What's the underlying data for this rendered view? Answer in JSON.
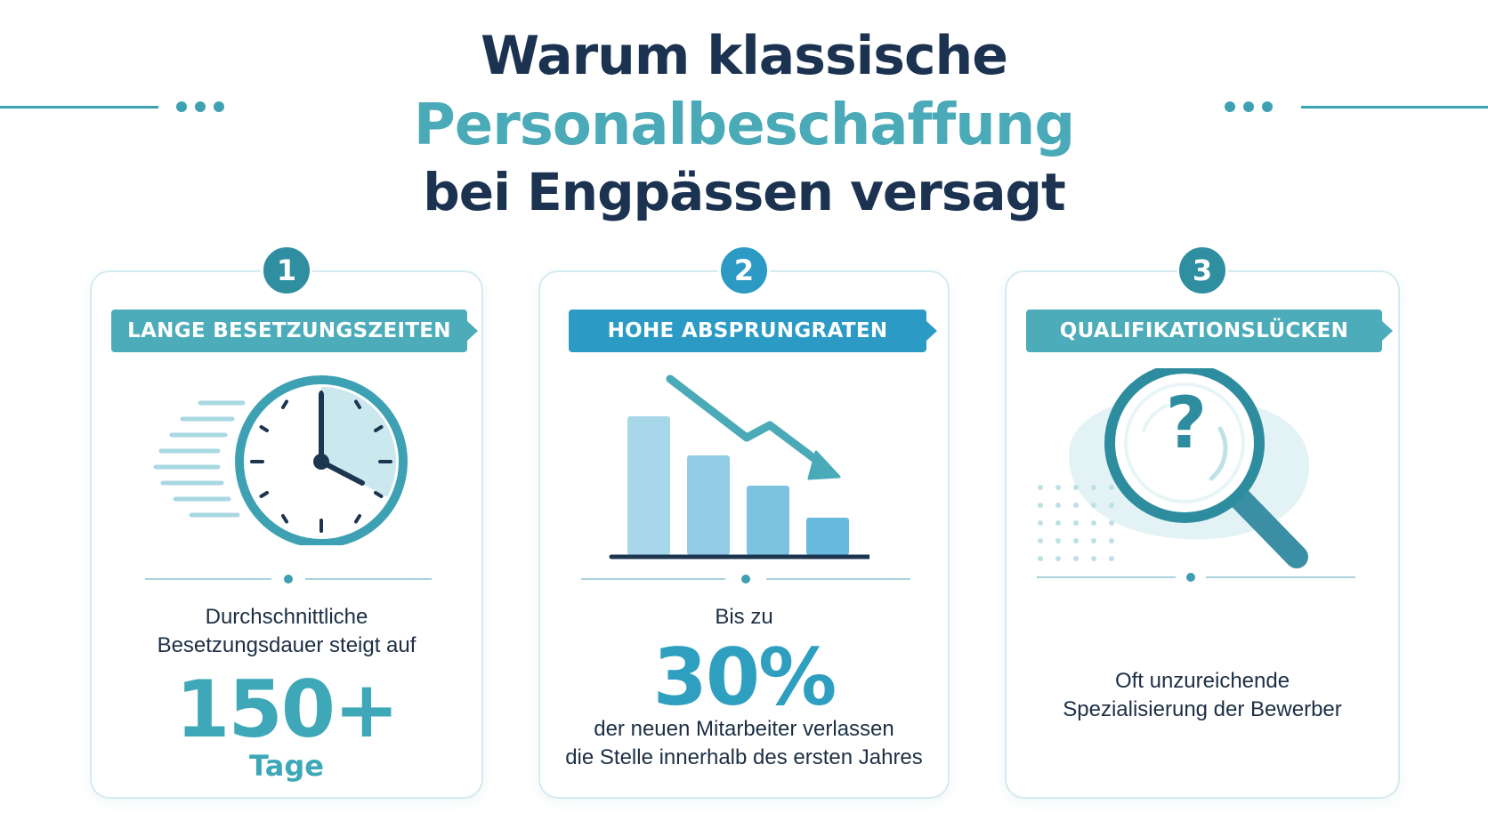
{
  "header": {
    "line1": "Warum klassische",
    "line2": "Personalbeschaffung",
    "line3": "bei Engpässen versagt"
  },
  "colors": {
    "navy": "#1b3250",
    "teal": "#4aaab8",
    "blue": "#2b9bc5",
    "light_blue": "#a9d7ea"
  },
  "cards": [
    {
      "number": "1",
      "label": "LANGE BESETZUNGSZEITEN",
      "icon": "clock-icon",
      "text_line1": "Durchschnittliche",
      "text_line2": "Besetzungsdauer steigt auf",
      "stat": "150+",
      "stat_unit": "Tage"
    },
    {
      "number": "2",
      "label": "HOHE ABSPRUNGRATEN",
      "icon": "declining-bar-chart-icon",
      "text_pre": "Bis zu",
      "stat": "30%",
      "text_line1": "der neuen Mitarbeiter verlassen",
      "text_line2": "die Stelle innerhalb des ersten Jahres"
    },
    {
      "number": "3",
      "label": "QUALIFIKATIONSLÜCKEN",
      "icon": "magnifier-question-icon",
      "icon_glyph": "?",
      "text_line1": "Oft unzureichende",
      "text_line2": "Spezialisierung der Bewerber"
    }
  ]
}
